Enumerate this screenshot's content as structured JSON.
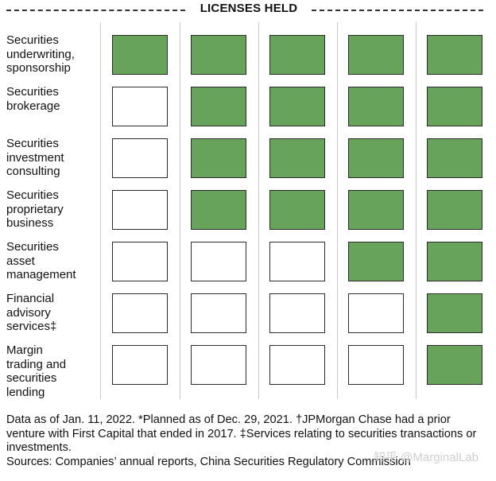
{
  "title": "LICENSES HELD",
  "chart_data": {
    "type": "table",
    "title": "LICENSES HELD",
    "rows": [
      {
        "label": "Securities underwriting, sponsorship",
        "held": [
          true,
          true,
          true,
          true,
          true
        ]
      },
      {
        "label": "Securities brokerage",
        "held": [
          false,
          true,
          true,
          true,
          true
        ]
      },
      {
        "label": "Securities investment consulting",
        "held": [
          false,
          true,
          true,
          true,
          true
        ]
      },
      {
        "label": "Securities proprietary business",
        "held": [
          false,
          true,
          true,
          true,
          true
        ]
      },
      {
        "label": "Securities asset management",
        "held": [
          false,
          false,
          false,
          true,
          true
        ]
      },
      {
        "label": "Financial advisory services‡",
        "held": [
          false,
          false,
          false,
          false,
          true
        ]
      },
      {
        "label": "Margin trading and securities lending",
        "held": [
          false,
          false,
          false,
          false,
          true
        ]
      }
    ],
    "colors": {
      "held": "#67a35a",
      "not_held": "#ffffff"
    }
  },
  "footnote": "Data as of Jan. 11, 2022. *Planned as of Dec. 29, 2021. †JPMorgan Chase had a prior venture with First Capital that ended in 2017. ‡Services relating to securities transactions or investments.",
  "source": "Sources: Companies’ annual reports, China Securities Regulatory Commission",
  "watermark": "知乎 @MarginalLab"
}
